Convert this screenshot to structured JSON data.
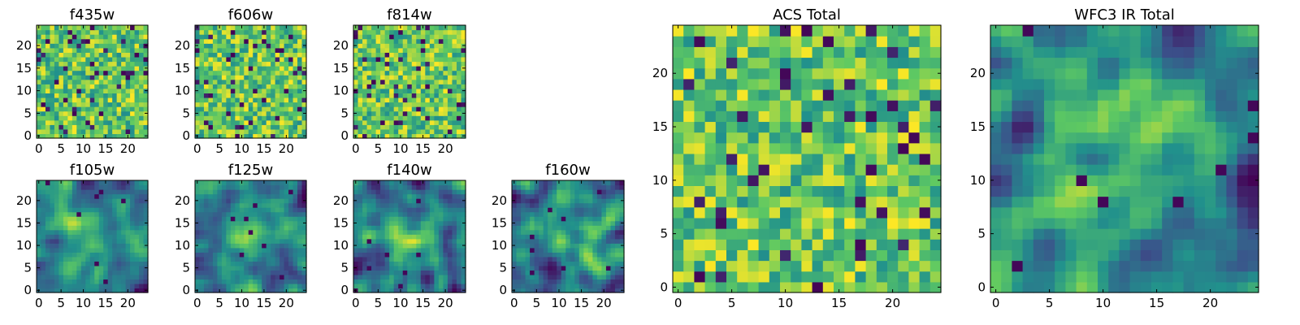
{
  "figure": {
    "background": "#ffffff"
  },
  "colormap": {
    "name": "viridis",
    "stops": [
      "#440154",
      "#3b528b",
      "#21918c",
      "#5ec962",
      "#fde725"
    ]
  },
  "chart_data": [
    {
      "type": "heatmap",
      "id": "f435w",
      "title": "f435w",
      "grid": [
        25,
        25
      ],
      "xlim": [
        -0.5,
        24.5
      ],
      "ylim": [
        -0.5,
        24.5
      ],
      "xticks": [
        0,
        5,
        10,
        15,
        20
      ],
      "yticks": [
        0,
        5,
        10,
        15,
        20
      ],
      "pattern": "noise",
      "seed": 11
    },
    {
      "type": "heatmap",
      "id": "f606w",
      "title": "f606w",
      "grid": [
        25,
        25
      ],
      "xlim": [
        -0.5,
        24.5
      ],
      "ylim": [
        -0.5,
        24.5
      ],
      "xticks": [
        0,
        5,
        10,
        15,
        20
      ],
      "yticks": [
        0,
        5,
        10,
        15,
        20
      ],
      "pattern": "noise",
      "seed": 23
    },
    {
      "type": "heatmap",
      "id": "f814w",
      "title": "f814w",
      "grid": [
        25,
        25
      ],
      "xlim": [
        -0.5,
        24.5
      ],
      "ylim": [
        -0.5,
        24.5
      ],
      "xticks": [
        0,
        5,
        10,
        15,
        20
      ],
      "yticks": [
        0,
        5,
        10,
        15,
        20
      ],
      "pattern": "noise",
      "seed": 37
    },
    {
      "type": "heatmap",
      "id": "f105w",
      "title": "f105w",
      "grid": [
        25,
        25
      ],
      "xlim": [
        -0.5,
        24.5
      ],
      "ylim": [
        -0.5,
        24.5
      ],
      "xticks": [
        0,
        5,
        10,
        15,
        20
      ],
      "yticks": [
        0,
        5,
        10,
        15,
        20
      ],
      "pattern": "smooth",
      "seed": 41
    },
    {
      "type": "heatmap",
      "id": "f125w",
      "title": "f125w",
      "grid": [
        25,
        25
      ],
      "xlim": [
        -0.5,
        24.5
      ],
      "ylim": [
        -0.5,
        24.5
      ],
      "xticks": [
        0,
        5,
        10,
        15,
        20
      ],
      "yticks": [
        0,
        5,
        10,
        15,
        20
      ],
      "pattern": "smooth",
      "seed": 53
    },
    {
      "type": "heatmap",
      "id": "f140w",
      "title": "f140w",
      "grid": [
        25,
        25
      ],
      "xlim": [
        -0.5,
        24.5
      ],
      "ylim": [
        -0.5,
        24.5
      ],
      "xticks": [
        0,
        5,
        10,
        15,
        20
      ],
      "yticks": [
        0,
        5,
        10,
        15,
        20
      ],
      "pattern": "smooth",
      "seed": 67
    },
    {
      "type": "heatmap",
      "id": "f160w",
      "title": "f160w",
      "grid": [
        25,
        25
      ],
      "xlim": [
        -0.5,
        24.5
      ],
      "ylim": [
        -0.5,
        24.5
      ],
      "xticks": [
        0,
        5,
        10,
        15,
        20
      ],
      "yticks": [
        0,
        5,
        10,
        15,
        20
      ],
      "pattern": "smooth",
      "seed": 79
    },
    {
      "type": "heatmap",
      "id": "acs-total",
      "title": "ACS Total",
      "grid": [
        25,
        25
      ],
      "xlim": [
        -0.5,
        24.5
      ],
      "ylim": [
        -0.5,
        24.5
      ],
      "xticks": [
        0,
        5,
        10,
        15,
        20
      ],
      "yticks": [
        0,
        5,
        10,
        15,
        20
      ],
      "pattern": "noise",
      "seed": 97
    },
    {
      "type": "heatmap",
      "id": "wfc3-total",
      "title": "WFC3 IR Total",
      "grid": [
        25,
        25
      ],
      "xlim": [
        -0.5,
        24.5
      ],
      "ylim": [
        -0.5,
        24.5
      ],
      "xticks": [
        0,
        5,
        10,
        15,
        20
      ],
      "yticks": [
        0,
        5,
        10,
        15,
        20
      ],
      "pattern": "smooth",
      "seed": 113
    }
  ]
}
